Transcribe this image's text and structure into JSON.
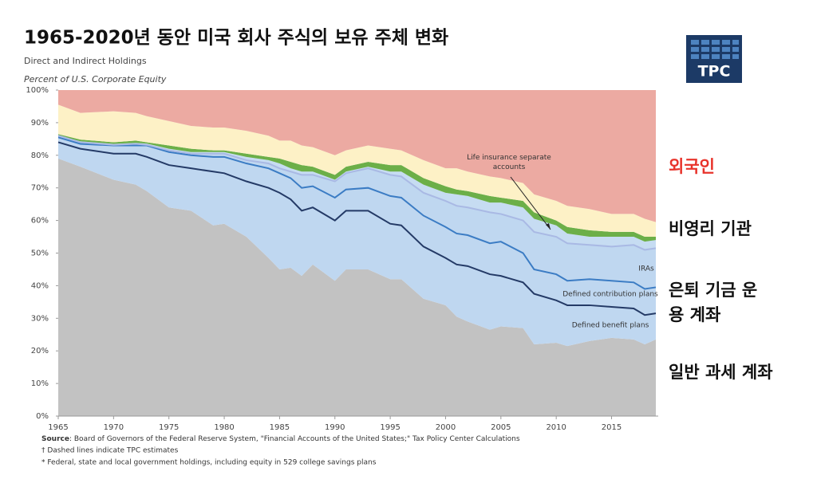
{
  "title": "1965-2020년 동안 미국 회사 주식의 보유 주체 변화",
  "logo": "TPC",
  "chart_data": {
    "type": "stacked_area",
    "subtitle": "Direct and Indirect Holdings",
    "y_label": "Percent of U.S. Corporate Equity",
    "x": [
      1965,
      1967,
      1970,
      1972,
      1973,
      1975,
      1977,
      1979,
      1980,
      1982,
      1984,
      1985,
      1986,
      1987,
      1988,
      1990,
      1991,
      1993,
      1995,
      1996,
      1998,
      2000,
      2001,
      2002,
      2004,
      2005,
      2007,
      2008,
      2010,
      2011,
      2013,
      2015,
      2017,
      2018,
      2019
    ],
    "xlim": [
      1965,
      2019
    ],
    "xticks": [
      1965,
      1970,
      1975,
      1980,
      1985,
      1990,
      1995,
      2000,
      2005,
      2010,
      2015
    ],
    "ylim": [
      0,
      100
    ],
    "yticks": [
      {
        "value": 0,
        "label": "0%"
      },
      {
        "value": 10,
        "label": "10%"
      },
      {
        "value": 20,
        "label": "20%"
      },
      {
        "value": 30,
        "label": "30%"
      },
      {
        "value": 40,
        "label": "40%"
      },
      {
        "value": 50,
        "label": "50%"
      },
      {
        "value": 60,
        "label": "60%"
      },
      {
        "value": 70,
        "label": "70%"
      },
      {
        "value": 80,
        "label": "80%"
      },
      {
        "value": 90,
        "label": "90%"
      },
      {
        "value": 100,
        "label": "100%"
      }
    ],
    "series": [
      {
        "name": "일반 과세 계좌",
        "color": "#c2c2c2",
        "values": [
          79,
          76.5,
          72.5,
          71,
          69,
          64,
          63,
          58.5,
          59,
          55,
          48.5,
          45,
          45.5,
          43,
          46.5,
          41.5,
          45,
          45,
          42,
          42,
          36,
          34,
          30.5,
          29,
          26.5,
          27.5,
          27,
          22,
          22.5,
          21.5,
          23,
          24,
          23.5,
          22,
          23.5
        ]
      },
      {
        "name": "Defined benefit plans",
        "color": "#bfd7f0",
        "line_color": "#243a66",
        "values": [
          5,
          5.5,
          8,
          9.5,
          10.5,
          13,
          13,
          16.5,
          15.5,
          17,
          21.5,
          23.5,
          21,
          20,
          17.5,
          18.5,
          18,
          18,
          17,
          16.5,
          16,
          14.5,
          16,
          17,
          17,
          15.5,
          14,
          15.5,
          13,
          12.5,
          11,
          9.5,
          9.5,
          9,
          8
        ]
      },
      {
        "name": "Defined contribution plans",
        "color": "#bfd7f0",
        "line_color": "#3b7cc4",
        "values": [
          1.5,
          1.5,
          2.5,
          2.5,
          3.5,
          4,
          4,
          4.5,
          5,
          5.5,
          6,
          6,
          6.5,
          7,
          6.5,
          7,
          6.5,
          7,
          8.5,
          8.5,
          9.5,
          9.5,
          9.5,
          9.5,
          9.5,
          10.5,
          9,
          7.5,
          8,
          7.5,
          8,
          8,
          8,
          8,
          8
        ]
      },
      {
        "name": "IRAs",
        "color": "#bfd7f0",
        "line_color": "#a9b9e4",
        "values": [
          0.5,
          0.5,
          0.2,
          0.5,
          0.2,
          0.5,
          0.5,
          1,
          1,
          1,
          1.5,
          1.5,
          2,
          4,
          3.5,
          5,
          5,
          6,
          6.5,
          6.5,
          7,
          8,
          8.5,
          8.5,
          9.5,
          8.5,
          10,
          11.5,
          11.5,
          11.5,
          10.5,
          10.5,
          11.5,
          12,
          12
        ]
      },
      {
        "name": "Life insurance separate accounts",
        "color": "#c6dcf2",
        "values": [
          0,
          0.3,
          0.3,
          0.3,
          0.4,
          0.5,
          0.5,
          0.5,
          0.5,
          1,
          1,
          1.5,
          1,
          1,
          1,
          0.5,
          0.5,
          0.5,
          1,
          1.5,
          2.5,
          2.5,
          3.5,
          3.5,
          3,
          3.5,
          4,
          4,
          3.5,
          3,
          2.5,
          3,
          2.5,
          2.5,
          2.5
        ]
      },
      {
        "name": "비영리 기관",
        "color": "#6caf48",
        "values": [
          0.5,
          0.5,
          0.5,
          0.7,
          0.4,
          1,
          1,
          0.5,
          0.5,
          1,
          1,
          1.5,
          2,
          2,
          1.5,
          1.5,
          1.5,
          1.5,
          2,
          2,
          2,
          2,
          1.5,
          1.5,
          2,
          1.5,
          2,
          2,
          1.5,
          2,
          2,
          1.5,
          1.5,
          1.5,
          1
        ]
      },
      {
        "color": "#fdf1c6",
        "values": [
          9,
          8.2,
          9.5,
          8.5,
          8,
          7.5,
          7,
          7,
          7,
          7,
          6.5,
          5.5,
          6.5,
          6,
          6,
          6,
          5,
          5,
          5,
          4.5,
          5.5,
          5.5,
          6.5,
          6,
          6,
          6,
          5.5,
          5.5,
          6,
          6.5,
          6.5,
          5.5,
          5.5,
          5.5,
          4.5
        ]
      },
      {
        "name": "외국인",
        "color": "#ecaaa2",
        "label_color": "#e8332b",
        "values": [
          4.5,
          7,
          6.5,
          7,
          8,
          9.5,
          11,
          11.5,
          11.5,
          12.5,
          14,
          15.5,
          15.5,
          17,
          17.5,
          20,
          18.5,
          17,
          18,
          18.5,
          21.5,
          24,
          24,
          25,
          26.5,
          27,
          28.5,
          32,
          34,
          35.5,
          36.5,
          38,
          38,
          39.5,
          40.5
        ]
      }
    ],
    "annotation": "은퇴 기금 운용 계좌",
    "source": {
      "label": "Source",
      "text": ": Board of Governors of the Federal Reserve System, \"Financial Accounts of the United States;\" Tax Policy Center Calculations"
    },
    "notes": [
      "† Dashed lines indicate TPC estimates",
      "* Federal, state and local government holdings, including equity in 529 college savings plans"
    ]
  }
}
